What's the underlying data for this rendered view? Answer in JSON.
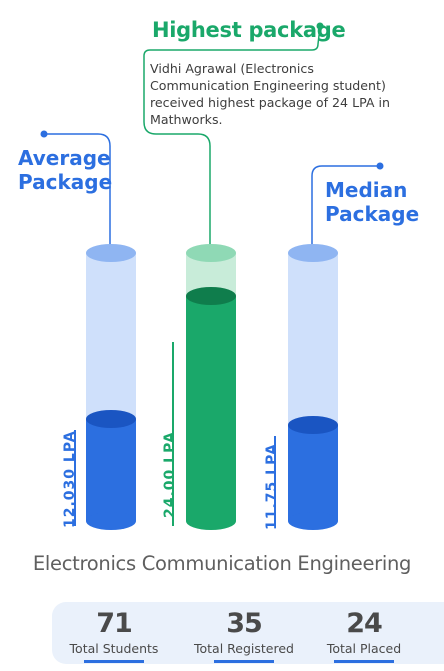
{
  "highest": {
    "title": "Highest package",
    "note": "Vidhi Agrawal (Electronics Communication Engineering student) received highest package of 24 LPA in Mathworks."
  },
  "average": {
    "title_line1": "Average",
    "title_line2": "Package",
    "value_label": "12.030 LPA",
    "fill_level": 0.38
  },
  "highest_bar": {
    "value_label": "24.00 LPA",
    "fill_level": 0.84
  },
  "median": {
    "title_line1": "Median",
    "title_line2": "Package",
    "value_label": "11.75 LPA",
    "fill_level": 0.36
  },
  "department": "Electronics Communication Engineering",
  "stats": [
    {
      "value": "71",
      "label": "Total Students"
    },
    {
      "value": "35",
      "label": "Total Registered"
    },
    {
      "value": "24",
      "label": "Total Placed"
    }
  ],
  "colors": {
    "green": "#1aa86a",
    "green_light": "#c8ecd9",
    "green_top": "#8fd9b5",
    "blue": "#2c6fe0",
    "blue_light": "#cfe0fb",
    "blue_top": "#8fb5f2"
  }
}
